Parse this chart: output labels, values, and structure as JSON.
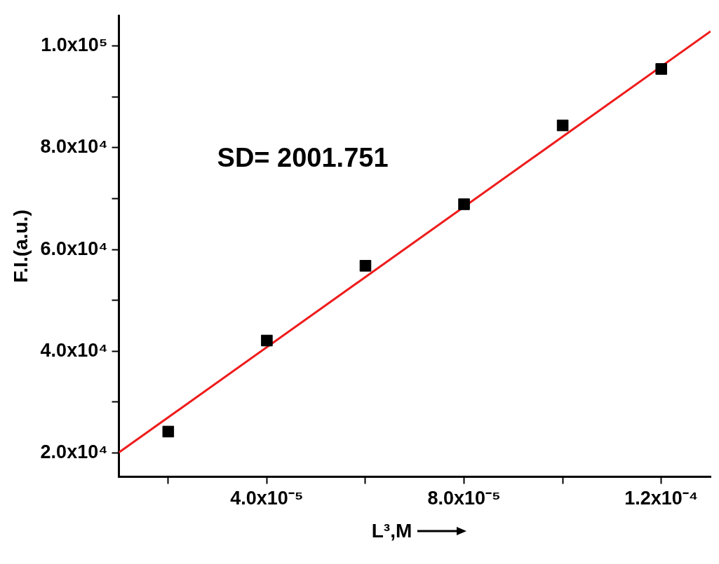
{
  "chart_data": {
    "type": "scatter",
    "xlabel": "L³,M",
    "ylabel": "F.I.(a.u.)",
    "annotations": [
      "SD= 2001.751"
    ],
    "xlim": [
      1e-05,
      0.00013
    ],
    "ylim": [
      15300,
      106000
    ],
    "xticks": [
      {
        "value": 2e-05,
        "label": null
      },
      {
        "value": 4e-05,
        "label": "4.0x10⁻⁵"
      },
      {
        "value": 6e-05,
        "label": null
      },
      {
        "value": 8e-05,
        "label": "8.0x10⁻⁵"
      },
      {
        "value": 0.0001,
        "label": null
      },
      {
        "value": 0.00012,
        "label": "1.2x10⁻⁴"
      }
    ],
    "yticks": [
      {
        "value": 20000,
        "label": "2.0x10⁴"
      },
      {
        "value": 30000,
        "label": null
      },
      {
        "value": 40000,
        "label": "4.0x10⁴"
      },
      {
        "value": 50000,
        "label": null
      },
      {
        "value": 60000,
        "label": "6.0x10⁴"
      },
      {
        "value": 70000,
        "label": null
      },
      {
        "value": 80000,
        "label": "8.0x10⁴"
      },
      {
        "value": 90000,
        "label": null
      },
      {
        "value": 100000,
        "label": "1.0x10⁵"
      }
    ],
    "grid": false,
    "legend": false,
    "marker": "square",
    "series": [
      {
        "type": "scatter",
        "color": "#000000",
        "x": [
          2e-05,
          4e-05,
          6e-05,
          8e-05,
          0.0001,
          0.00012
        ],
        "values": [
          24200,
          42100,
          56800,
          68900,
          84400,
          95500
        ]
      },
      {
        "type": "line",
        "color": "#ee1c1c",
        "marker": "none",
        "line_style": "solid",
        "x": [
          1e-05,
          0.00013
        ],
        "values": [
          20100,
          102900
        ]
      }
    ]
  }
}
